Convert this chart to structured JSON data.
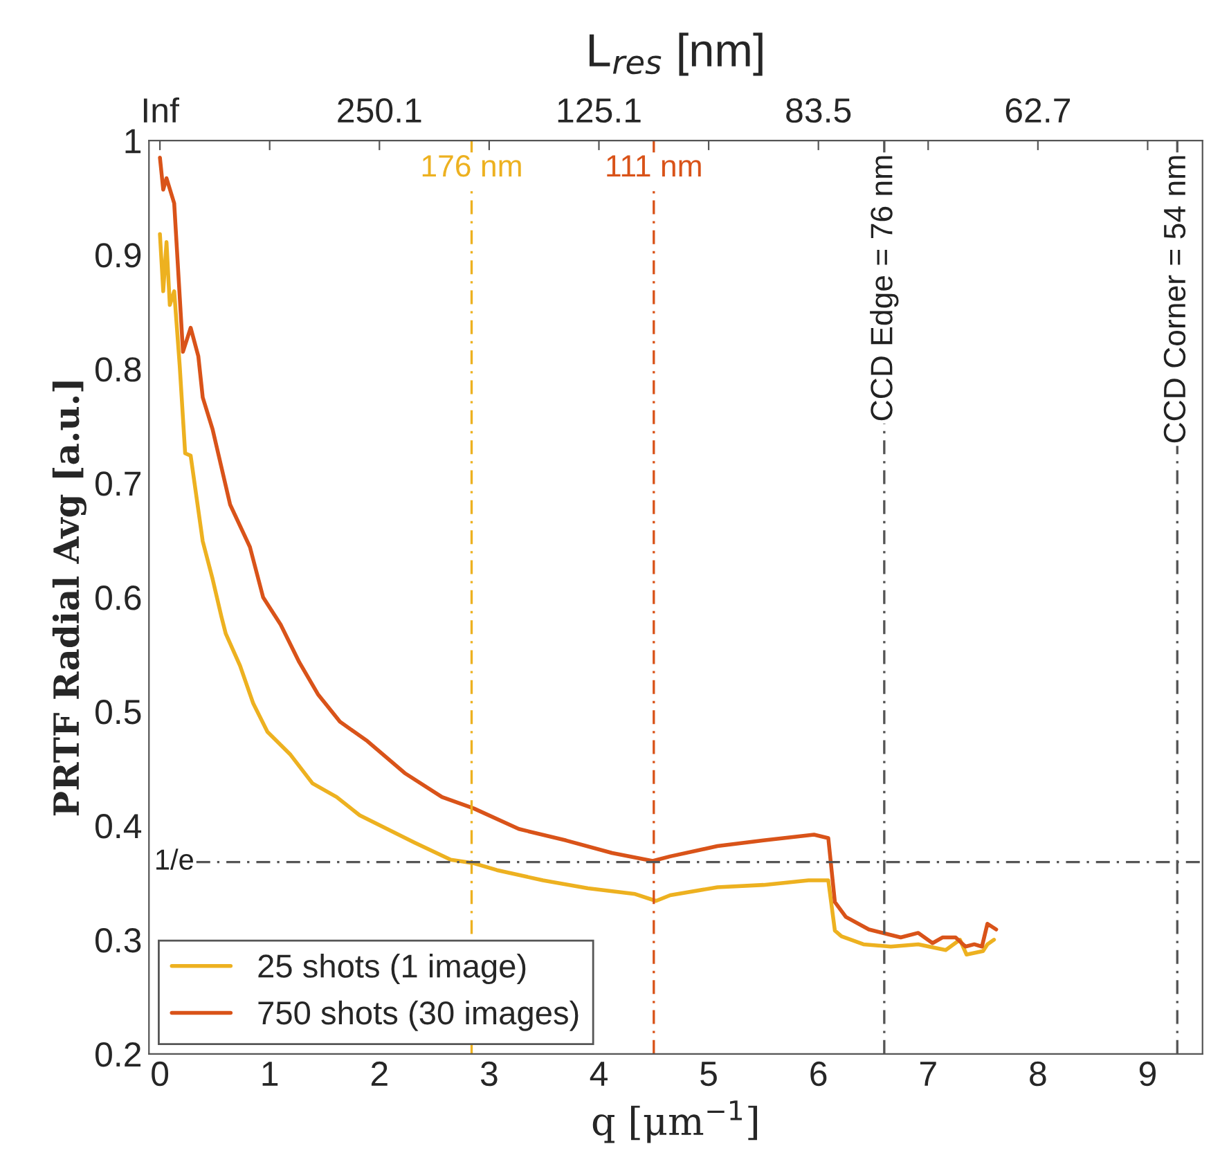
{
  "chart_data": {
    "type": "line",
    "xlabel": "q [μm$^{−1}$]",
    "ylabel": "PRTF Radial Avg [a.u.]",
    "x2label": "L$_{res}$ [nm]",
    "xlim": [
      -0.1,
      9.5
    ],
    "ylim": [
      0.2,
      1.0
    ],
    "xticks": [
      0,
      1,
      2,
      3,
      4,
      5,
      6,
      7,
      8,
      9
    ],
    "yticks": [
      0.2,
      0.3,
      0.4,
      0.5,
      0.6,
      0.7,
      0.8,
      0.9,
      1
    ],
    "annotations": [
      "Inf",
      "250.1",
      "125.1",
      "83.5",
      "62.7",
      {
        "text": "CCD Edge = 76 nm",
        "x": 6.6
      },
      {
        "text": "CCD Corner = 54 nm",
        "x": 9.27
      }
    ],
    "grid": false,
    "legend": "bottom left",
    "series": [
      {
        "name": "25 shots (1 image)",
        "color": "#edb120",
        "x": [
          0.0,
          0.03,
          0.06,
          0.09,
          0.13,
          0.18,
          0.23,
          0.28,
          0.39,
          0.48,
          0.56,
          0.6,
          0.73,
          0.85,
          0.98,
          1.19,
          1.39,
          1.61,
          1.82,
          2.07,
          2.32,
          2.65,
          2.86,
          3.07,
          3.49,
          3.9,
          4.33,
          4.52,
          4.65,
          5.08,
          5.5,
          5.91,
          6.09,
          6.15,
          6.21,
          6.41,
          6.66,
          6.91,
          7.16,
          7.29,
          7.35,
          7.5,
          7.54,
          7.6
        ],
        "values": [
          0.918,
          0.868,
          0.911,
          0.856,
          0.868,
          0.803,
          0.726,
          0.724,
          0.649,
          0.616,
          0.583,
          0.568,
          0.54,
          0.507,
          0.482,
          0.462,
          0.437,
          0.425,
          0.409,
          0.397,
          0.385,
          0.37,
          0.367,
          0.361,
          0.352,
          0.345,
          0.34,
          0.334,
          0.339,
          0.346,
          0.348,
          0.352,
          0.352,
          0.308,
          0.303,
          0.296,
          0.294,
          0.296,
          0.291,
          0.3,
          0.287,
          0.29,
          0.296,
          0.3
        ]
      },
      {
        "name": "750 shots (30 images)",
        "color": "#d95319",
        "x": [
          0.0,
          0.03,
          0.06,
          0.13,
          0.21,
          0.28,
          0.35,
          0.39,
          0.48,
          0.64,
          0.82,
          0.94,
          1.1,
          1.27,
          1.44,
          1.64,
          1.89,
          2.23,
          2.57,
          2.86,
          3.27,
          3.7,
          4.12,
          4.49,
          4.65,
          5.08,
          5.5,
          5.96,
          6.09,
          6.15,
          6.25,
          6.46,
          6.75,
          6.91,
          7.04,
          7.13,
          7.25,
          7.34,
          7.42,
          7.49,
          7.54,
          7.62
        ],
        "values": [
          0.985,
          0.957,
          0.967,
          0.945,
          0.815,
          0.836,
          0.811,
          0.775,
          0.747,
          0.681,
          0.644,
          0.6,
          0.576,
          0.543,
          0.515,
          0.491,
          0.474,
          0.446,
          0.425,
          0.415,
          0.397,
          0.387,
          0.376,
          0.369,
          0.373,
          0.382,
          0.387,
          0.392,
          0.389,
          0.333,
          0.32,
          0.309,
          0.302,
          0.306,
          0.297,
          0.302,
          0.302,
          0.294,
          0.296,
          0.294,
          0.314,
          0.309
        ]
      }
    ],
    "ref_lines": [
      {
        "axis": "x",
        "value": 2.84,
        "label": "176 nm",
        "color": "#edb120",
        "line_style": "dashed"
      },
      {
        "axis": "x",
        "value": 4.5,
        "label": "111 nm",
        "color": "#d95319",
        "line_style": "dashed"
      },
      {
        "axis": "x",
        "value": 6.6,
        "color": "#555555",
        "line_style": "dashed"
      },
      {
        "axis": "x",
        "value": 9.27,
        "color": "#555555",
        "line_style": "dashed"
      },
      {
        "axis": "y",
        "value": 0.368,
        "label": "1/e",
        "color": "#555555",
        "line_style": "dashed"
      }
    ]
  }
}
